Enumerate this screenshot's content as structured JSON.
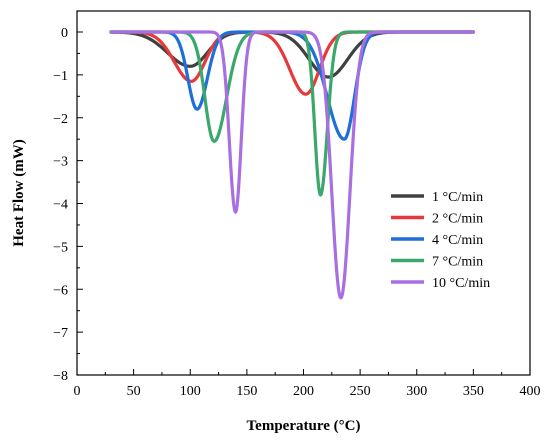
{
  "chart_data": {
    "type": "line",
    "xlabel": "Temperature (°C)",
    "ylabel": "Heat Flow (mW)",
    "xlim": [
      0,
      400
    ],
    "ylim": [
      -8,
      0.3
    ],
    "x_ticks": [
      0,
      50,
      100,
      150,
      200,
      250,
      300,
      350,
      400
    ],
    "y_ticks": [
      0,
      -1,
      -2,
      -3,
      -4,
      -5,
      -6,
      -7,
      -8
    ],
    "x_tick_labels": [
      "0",
      "50",
      "100",
      "150",
      "200",
      "250",
      "300",
      "350",
      "400"
    ],
    "y_tick_labels": [
      "0",
      "−1",
      "−2",
      "−3",
      "−4",
      "−5",
      "−6",
      "−7",
      "−8"
    ],
    "grid": false,
    "legend_position": "right",
    "x_range": [
      30,
      350
    ],
    "series": [
      {
        "name": "1 °C/min",
        "color": "#404040",
        "peaks": [
          {
            "center": 100,
            "depth": 0.8,
            "width_left": 20,
            "width_right": 15
          },
          {
            "center": 222,
            "depth": 1.05,
            "width_left": 17,
            "width_right": 17
          }
        ]
      },
      {
        "name": "2 °C/min",
        "color": "#e8393a",
        "peaks": [
          {
            "center": 101,
            "depth": 1.15,
            "width_left": 15,
            "width_right": 12
          },
          {
            "center": 202,
            "depth": 1.45,
            "width_left": 14,
            "width_right": 12
          }
        ]
      },
      {
        "name": "4 °C/min",
        "color": "#1e6fd9",
        "peaks": [
          {
            "center": 106,
            "depth": 1.8,
            "width_left": 8,
            "width_right": 9
          },
          {
            "center": 236,
            "depth": 2.5,
            "width_left": 15,
            "width_right": 9
          }
        ]
      },
      {
        "name": "7 °C/min",
        "color": "#3aa86b",
        "peaks": [
          {
            "center": 121,
            "depth": 2.55,
            "width_left": 8,
            "width_right": 11
          },
          {
            "center": 215,
            "depth": 3.8,
            "width_left": 5,
            "width_right": 6
          }
        ]
      },
      {
        "name": "10 °C/min",
        "color": "#a86fe0",
        "peaks": [
          {
            "center": 140,
            "depth": 4.2,
            "width_left": 5.5,
            "width_right": 5
          },
          {
            "center": 233,
            "depth": 6.2,
            "width_left": 8,
            "width_right": 8
          }
        ]
      }
    ]
  }
}
